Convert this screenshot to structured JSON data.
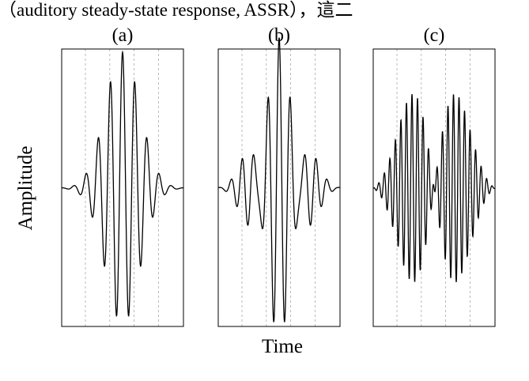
{
  "header": {
    "text": "（auditory steady-state response, ASSR），這二"
  },
  "figure": {
    "panels": [
      {
        "label": "(a)"
      },
      {
        "label": "(b)"
      },
      {
        "label": "(c)"
      }
    ],
    "y_label": "Amplitude",
    "x_label": "Time"
  }
}
